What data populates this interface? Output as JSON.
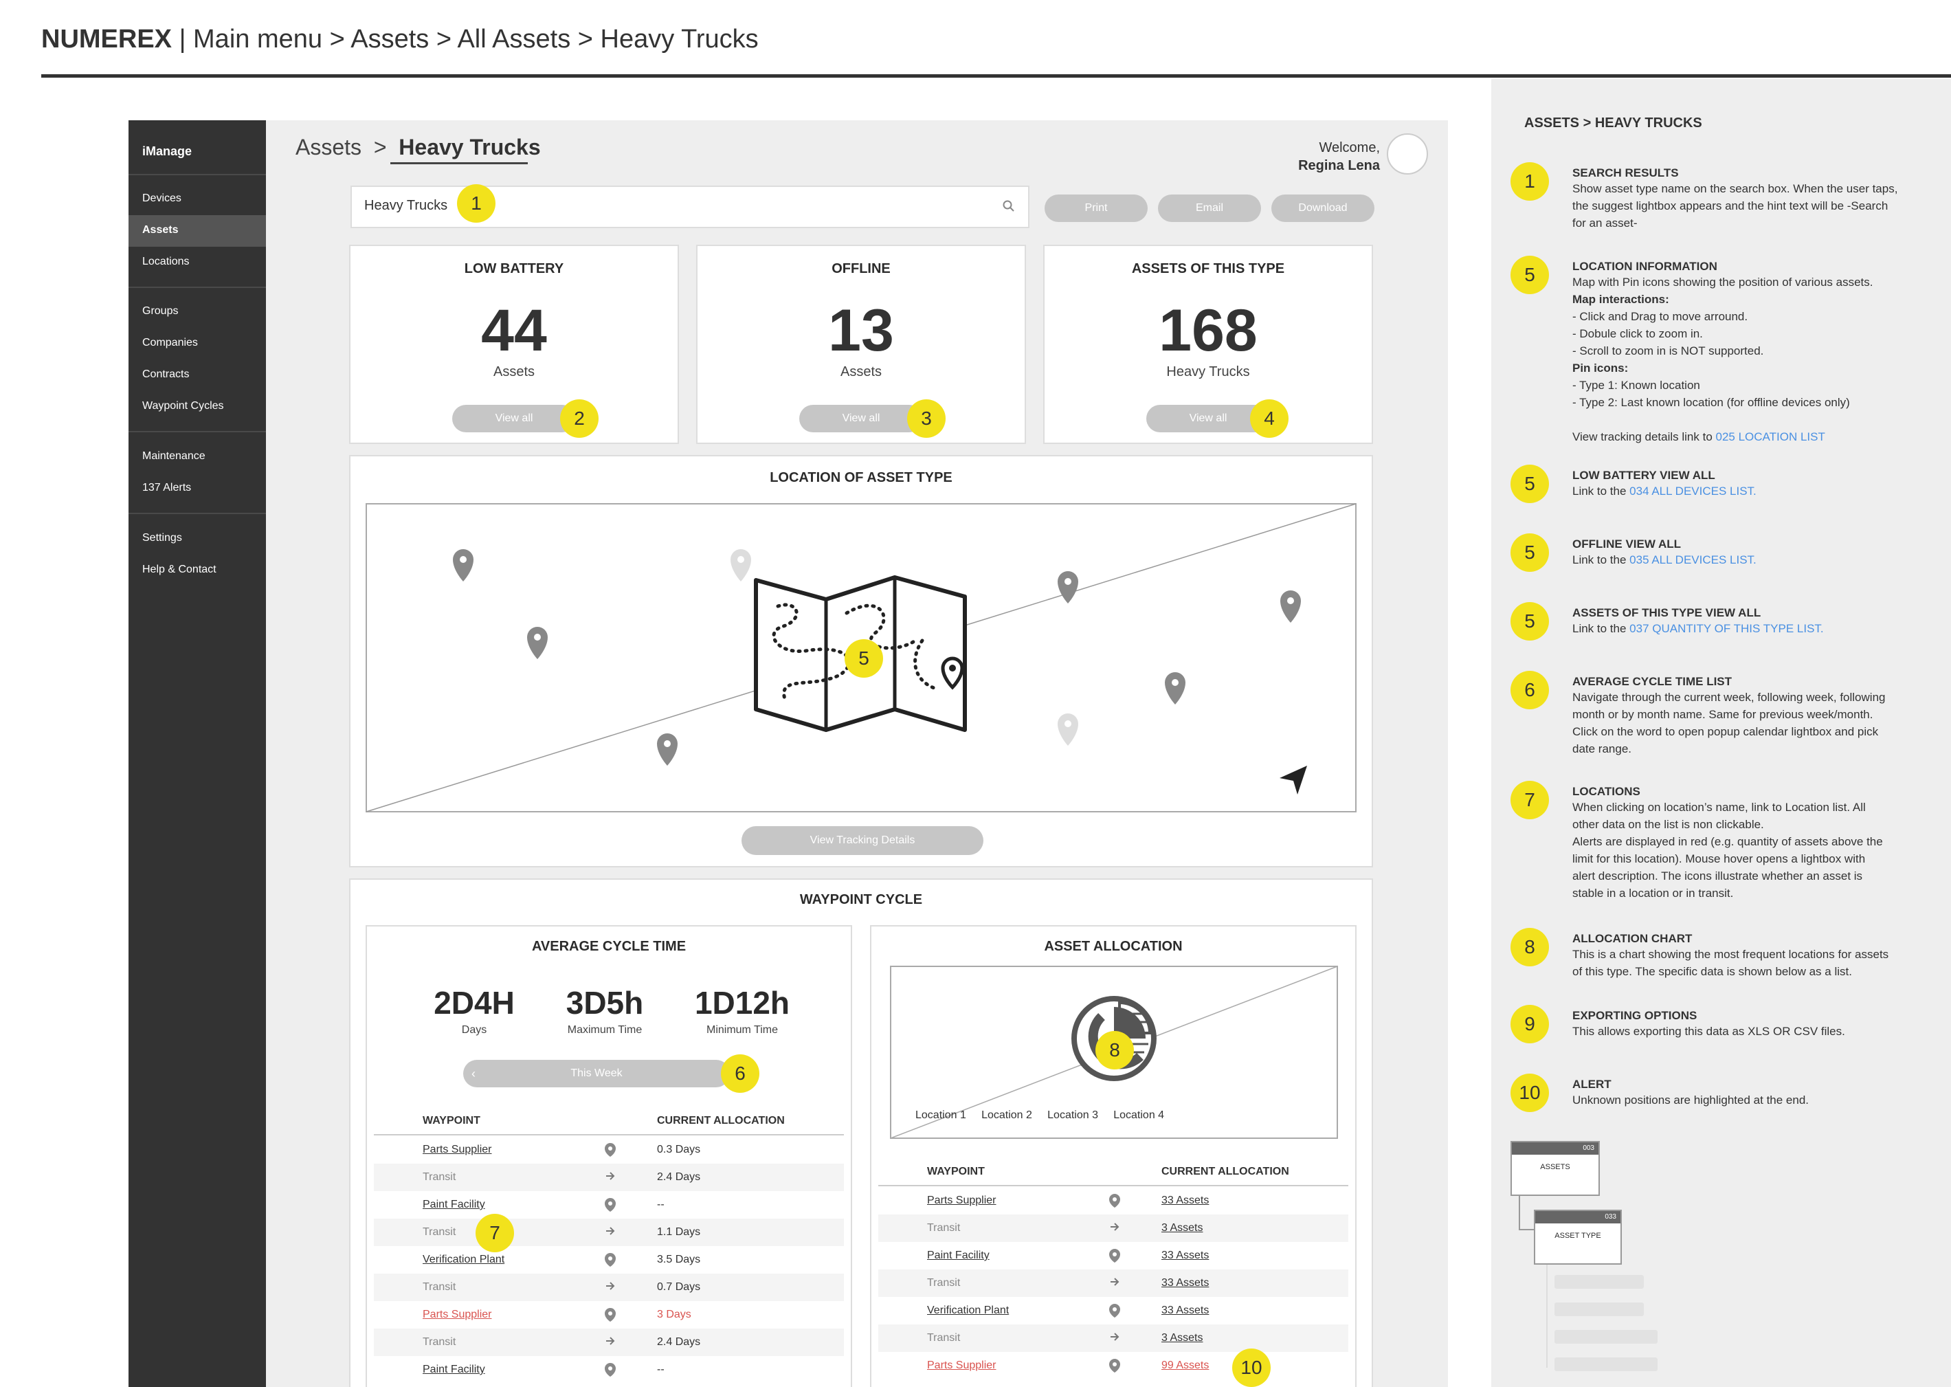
{
  "header": {
    "brand": "NUMEREX",
    "separator": "|",
    "path": "Main menu > Assets > All Assets > Heavy Trucks"
  },
  "sidebar": {
    "brand": "iManage",
    "items": [
      {
        "label": "Devices"
      },
      {
        "label": "Assets",
        "active": true
      },
      {
        "label": "Locations"
      },
      {
        "label": "Groups"
      },
      {
        "label": "Companies"
      },
      {
        "label": "Contracts"
      },
      {
        "label": "Waypoint Cycles"
      },
      {
        "label": "Maintenance"
      },
      {
        "label": "137 Alerts"
      },
      {
        "label": "Settings"
      },
      {
        "label": "Help & Contact"
      }
    ]
  },
  "breadcrumb": {
    "parent": "Assets",
    "sep": ">",
    "current": "Heavy Trucks"
  },
  "user": {
    "welcome": "Welcome,",
    "name": "Regina Lena"
  },
  "search": {
    "value": "Heavy Trucks",
    "badge": "1"
  },
  "actions": {
    "print": "Print",
    "email": "Email",
    "download": "Download"
  },
  "stats": [
    {
      "title": "LOW BATTERY",
      "value": "44",
      "unit": "Assets",
      "button": "View all",
      "badge": "2"
    },
    {
      "title": "OFFLINE",
      "value": "13",
      "unit": "Assets",
      "button": "View all",
      "badge": "3"
    },
    {
      "title": "ASSETS OF THIS TYPE",
      "value": "168",
      "unit": "Heavy Trucks",
      "button": "View all",
      "badge": "4"
    }
  ],
  "map": {
    "title": "LOCATION OF ASSET TYPE",
    "badge": "5",
    "button": "View Tracking Details"
  },
  "waypoint": {
    "title": "WAYPOINT CYCLE",
    "avg": {
      "title": "AVERAGE CYCLE TIME",
      "metrics": [
        {
          "value": "2D4H",
          "label": "Days"
        },
        {
          "value": "3D5h",
          "label": "Maximum Time"
        },
        {
          "value": "1D12h",
          "label": "Minimum Time"
        }
      ],
      "nav_prev": "‹",
      "nav_label": "This Week",
      "badge": "6",
      "col1": "WAYPOINT",
      "col2": "CURRENT ALLOCATION",
      "rows": [
        {
          "name": "Parts Supplier",
          "val": "0.3 Days",
          "type": "pin"
        },
        {
          "name": "Transit",
          "val": "2.4 Days",
          "type": "arrow"
        },
        {
          "name": "Paint Facility",
          "val": "--",
          "type": "pin"
        },
        {
          "name": "Transit",
          "val": "1.1 Days",
          "type": "arrow"
        },
        {
          "name": "Verification Plant",
          "val": "3.5 Days",
          "type": "pin"
        },
        {
          "name": "Transit",
          "val": "0.7 Days",
          "type": "arrow"
        },
        {
          "name": "Parts Supplier",
          "val": "3 Days",
          "type": "pin",
          "alert": true
        },
        {
          "name": "Transit",
          "val": "2.4 Days",
          "type": "arrow"
        },
        {
          "name": "Paint Facility",
          "val": "--",
          "type": "pin"
        }
      ],
      "row_badge": "7"
    },
    "alloc": {
      "title": "ASSET ALLOCATION",
      "badge": "8",
      "legend": [
        "Location 1",
        "Location 2",
        "Location 3",
        "Location 4"
      ],
      "col1": "WAYPOINT",
      "col2": "CURRENT ALLOCATION",
      "rows": [
        {
          "name": "Parts Supplier",
          "val": "33 Assets",
          "type": "pin"
        },
        {
          "name": "Transit",
          "val": "3 Assets",
          "type": "arrow"
        },
        {
          "name": "Paint Facility",
          "val": "33 Assets",
          "type": "pin"
        },
        {
          "name": "Transit",
          "val": "33 Assets",
          "type": "arrow"
        },
        {
          "name": "Verification Plant",
          "val": "33 Assets",
          "type": "pin"
        },
        {
          "name": "Transit",
          "val": "3 Assets",
          "type": "arrow"
        },
        {
          "name": "Parts Supplier",
          "val": "99 Assets",
          "type": "pin",
          "alert": true
        }
      ],
      "row_badge": "10"
    }
  },
  "notes": {
    "heading": "ASSETS > HEAVY TRUCKS",
    "items": [
      {
        "badge": "1",
        "title": "SEARCH RESULTS",
        "lines": [
          "Show asset type name on the search box. When the user taps,",
          "the suggest lightbox appears and the hint text will be -Search",
          "for an asset-"
        ]
      },
      {
        "badge": "5",
        "title": "LOCATION INFORMATION",
        "lines": [
          "Map with Pin icons showing the position of various assets."
        ],
        "bold1": "Map interactions:",
        "lines2": [
          "- Click and Drag to move arround.",
          "- Dobule click to zoom in.",
          "- Scroll to zoom in is NOT supported."
        ],
        "bold2": "Pin icons:",
        "lines3": [
          "- Type 1: Known location",
          "- Type 2: Last known location  (for offline devices only)"
        ],
        "link_pre": "View tracking details link to ",
        "link": "025 LOCATION LIST"
      },
      {
        "badge": "5",
        "title": "LOW BATTERY VIEW ALL",
        "link_pre": "Link to the ",
        "link": "034 ALL DEVICES LIST."
      },
      {
        "badge": "5",
        "title": "OFFLINE VIEW ALL",
        "link_pre": "Link to the ",
        "link": "035 ALL DEVICES LIST."
      },
      {
        "badge": "5",
        "title": "ASSETS OF THIS TYPE VIEW ALL",
        "link_pre": "Link to the ",
        "link": "037 QUANTITY OF THIS TYPE LIST."
      },
      {
        "badge": "6",
        "title": "AVERAGE CYCLE TIME LIST",
        "lines": [
          "Navigate through the current week, following week, following",
          "month or by month name. Same for previous week/month.",
          "Click on the word to open popup calendar lightbox and pick",
          "date range."
        ]
      },
      {
        "badge": "7",
        "title": "LOCATIONS",
        "lines": [
          "When clicking on location’s name, link to Location list. All",
          "other data on the list is non clickable.",
          "Alerts are displayed in red (e.g. quantity of assets above the",
          "limit for this location). Mouse hover opens a lightbox with",
          "alert description. The icons illustrate whether an asset is",
          "stable in a location or in transit."
        ]
      },
      {
        "badge": "8",
        "title": "ALLOCATION CHART",
        "lines": [
          "This is a chart showing the most frequent locations for assets",
          "of this type. The specific data is shown below as a list."
        ]
      },
      {
        "badge": "9",
        "title": "EXPORTING OPTIONS",
        "lines": [
          "This allows exporting this data as XLS OR CSV files."
        ]
      },
      {
        "badge": "10",
        "title": "ALERT",
        "lines": [
          "Unknown positions are highlighted at the end."
        ]
      }
    ],
    "sitemap": {
      "n1": "003",
      "l1": "ASSETS",
      "n2": "033",
      "l2": "ASSET TYPE"
    }
  },
  "colors": {
    "accent": "#f2e21c",
    "sidebar": "#333333",
    "link": "#4a90e2",
    "alert": "#d9534f"
  }
}
